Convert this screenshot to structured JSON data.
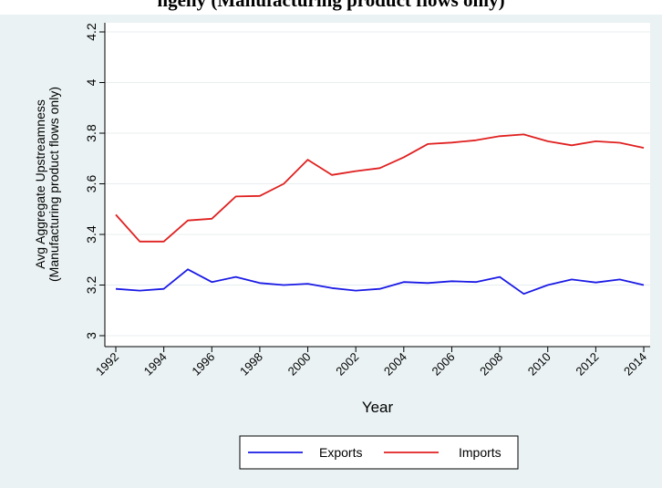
{
  "title_fragment": "ngeny (Manufacturing product flows only)",
  "chart_data": {
    "type": "line",
    "xlabel": "Year",
    "ylabel_line1": "Avg Aggregate Upstreamness",
    "ylabel_line2": "(Manufacturing product flows only)",
    "xlim": [
      1992,
      2014
    ],
    "ylim": [
      3.0,
      4.2
    ],
    "xticks": [
      1992,
      1994,
      1996,
      1998,
      2000,
      2002,
      2004,
      2006,
      2008,
      2010,
      2012,
      2014
    ],
    "yticks": [
      3,
      3.2,
      3.4,
      3.6,
      3.8,
      4,
      4.2
    ],
    "ytick_labels": [
      "3",
      "3.2",
      "3.4",
      "3.6",
      "3.8",
      "4",
      "4.2"
    ],
    "grid": true,
    "legend_position": "bottom",
    "x": [
      1992,
      1993,
      1994,
      1995,
      1996,
      1997,
      1998,
      1999,
      2000,
      2001,
      2002,
      2003,
      2004,
      2005,
      2006,
      2007,
      2008,
      2009,
      2010,
      2011,
      2012,
      2013,
      2014
    ],
    "series": [
      {
        "name": "Exports",
        "color": "#1a1ae6",
        "values": [
          3.185,
          3.178,
          3.185,
          3.262,
          3.212,
          3.232,
          3.208,
          3.2,
          3.205,
          3.188,
          3.178,
          3.185,
          3.212,
          3.208,
          3.215,
          3.212,
          3.232,
          3.165,
          3.2,
          3.222,
          3.21,
          3.222,
          3.2
        ]
      },
      {
        "name": "Imports",
        "color": "#e02020",
        "values": [
          3.478,
          3.372,
          3.372,
          3.455,
          3.462,
          3.55,
          3.552,
          3.6,
          3.695,
          3.635,
          3.65,
          3.662,
          3.705,
          3.757,
          3.763,
          3.772,
          3.788,
          3.795,
          3.768,
          3.752,
          3.768,
          3.762,
          3.742
        ]
      }
    ]
  }
}
